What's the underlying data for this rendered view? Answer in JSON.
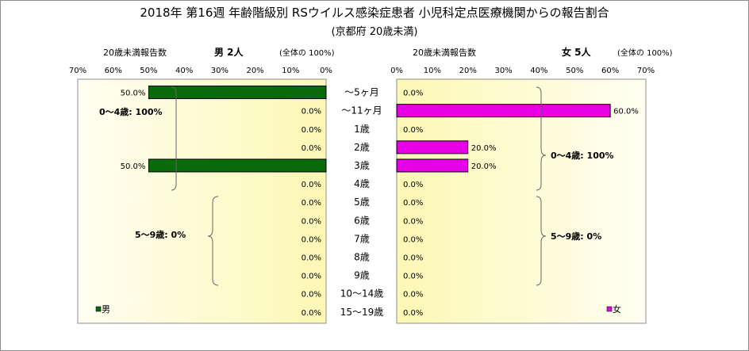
{
  "chart_data": {
    "type": "bar",
    "title": "2018年 第16週 年齢階級別 RSウイルス感染症患者 小児科定点医療機関からの報告割合",
    "subtitle": "(京都府 20歳未満)",
    "categories": [
      "～5ヶ月",
      "～11ヶ月",
      "1歳",
      "2歳",
      "3歳",
      "4歳",
      "5歳",
      "6歳",
      "7歳",
      "8歳",
      "9歳",
      "10～14歳",
      "15～19歳"
    ],
    "xlim": [
      0,
      70
    ],
    "ticks": [
      0,
      10,
      20,
      30,
      40,
      50,
      60,
      70
    ],
    "tick_labels": [
      "0%",
      "10%",
      "20%",
      "30%",
      "40%",
      "50%",
      "60%",
      "70%"
    ],
    "panels": [
      {
        "side": "left",
        "header_label": "20歳未満報告数",
        "header_count": "男 2人",
        "header_note": "(全体の 100%)",
        "series_name": "男",
        "color": "#0a6b0a",
        "values": [
          50,
          0,
          0,
          0,
          50,
          0,
          0,
          0,
          0,
          0,
          0,
          0,
          0
        ],
        "value_labels": [
          "50.0%",
          "0.0%",
          "0.0%",
          "0.0%",
          "50.0%",
          "0.0%",
          "0.0%",
          "0.0%",
          "0.0%",
          "0.0%",
          "0.0%",
          "0.0%",
          "0.0%"
        ],
        "annotations": [
          "0～4歳: 100%",
          "5～9歳: 0%"
        ]
      },
      {
        "side": "right",
        "header_label": "20歳未満報告数",
        "header_count": "女 5人",
        "header_note": "(全体の 100%)",
        "series_name": "女",
        "color": "#e600e6",
        "values": [
          0,
          60,
          0,
          20,
          20,
          0,
          0,
          0,
          0,
          0,
          0,
          0,
          0
        ],
        "value_labels": [
          "0.0%",
          "60.0%",
          "0.0%",
          "20.0%",
          "20.0%",
          "0.0%",
          "0.0%",
          "0.0%",
          "0.0%",
          "0.0%",
          "0.0%",
          "0.0%",
          "0.0%"
        ],
        "annotations": [
          "0～4歳: 100%",
          "5～9歳: 0%"
        ]
      }
    ]
  }
}
